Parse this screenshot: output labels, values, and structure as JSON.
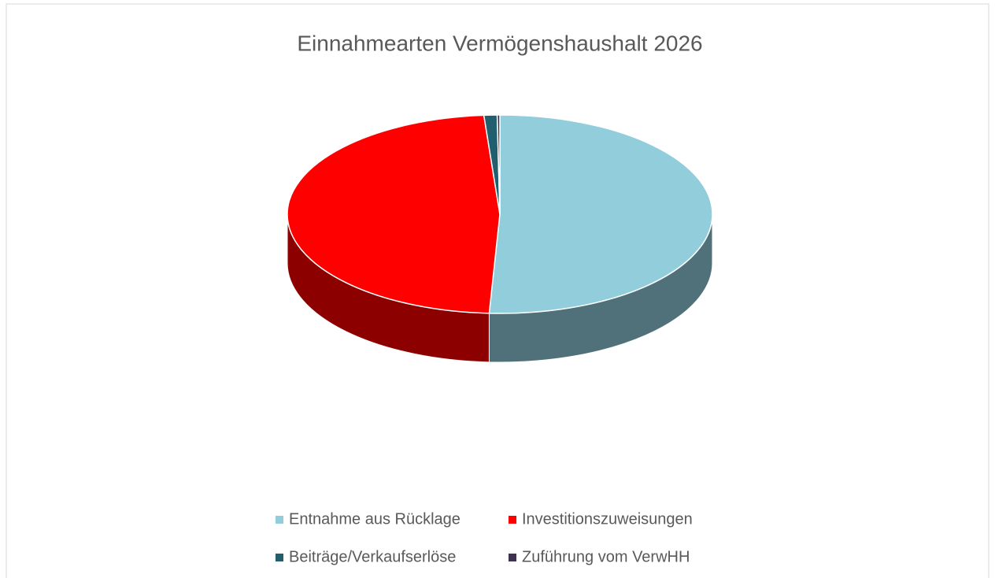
{
  "chart_data": {
    "type": "pie3d",
    "title": "Einnahmearten Vermögenshaushalt 2026",
    "categories": [
      "Entnahme aus Rücklage",
      "Investitionszuweisungen",
      "Beiträge/Verkaufserlöse",
      "Zuführung vom VerwHH"
    ],
    "values": [
      50.8,
      48,
      1,
      0.2
    ],
    "colors": [
      "#92cddc",
      "#ff0000",
      "#215f6e",
      "#3f3151"
    ],
    "legend": "bottom"
  }
}
